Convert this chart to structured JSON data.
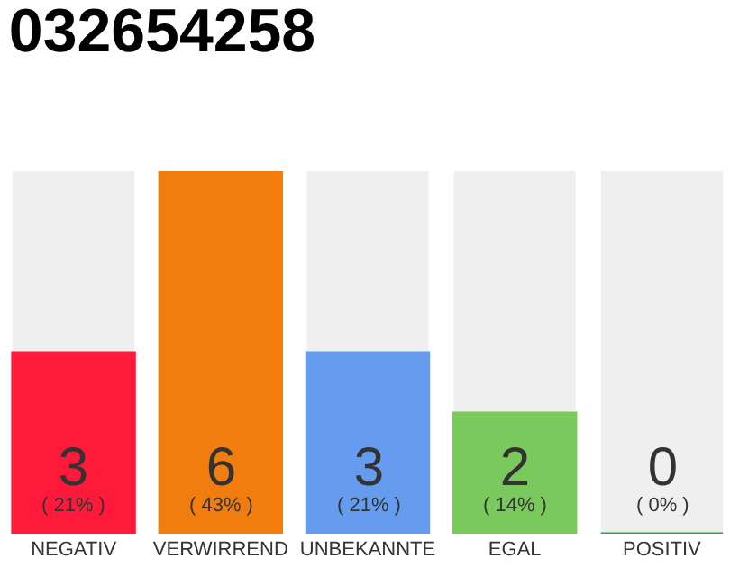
{
  "chart_data": {
    "type": "bar",
    "title": "032654258",
    "categories": [
      "NEGATIV",
      "VERWIRREND",
      "UNBEKANNTE",
      "EGAL",
      "POSITIV"
    ],
    "values": [
      3,
      6,
      3,
      2,
      0
    ],
    "colors": [
      "#ff1a3c",
      "#f07d0d",
      "#659cee",
      "#7ac95c",
      "#2ca84a"
    ],
    "value_labels": [
      "3\n( 21% )",
      "6\n( 43% )",
      "3\n( 21% )",
      "2\n( 14% )",
      "0\n( 0% )"
    ],
    "tick_labels": "x"
  }
}
